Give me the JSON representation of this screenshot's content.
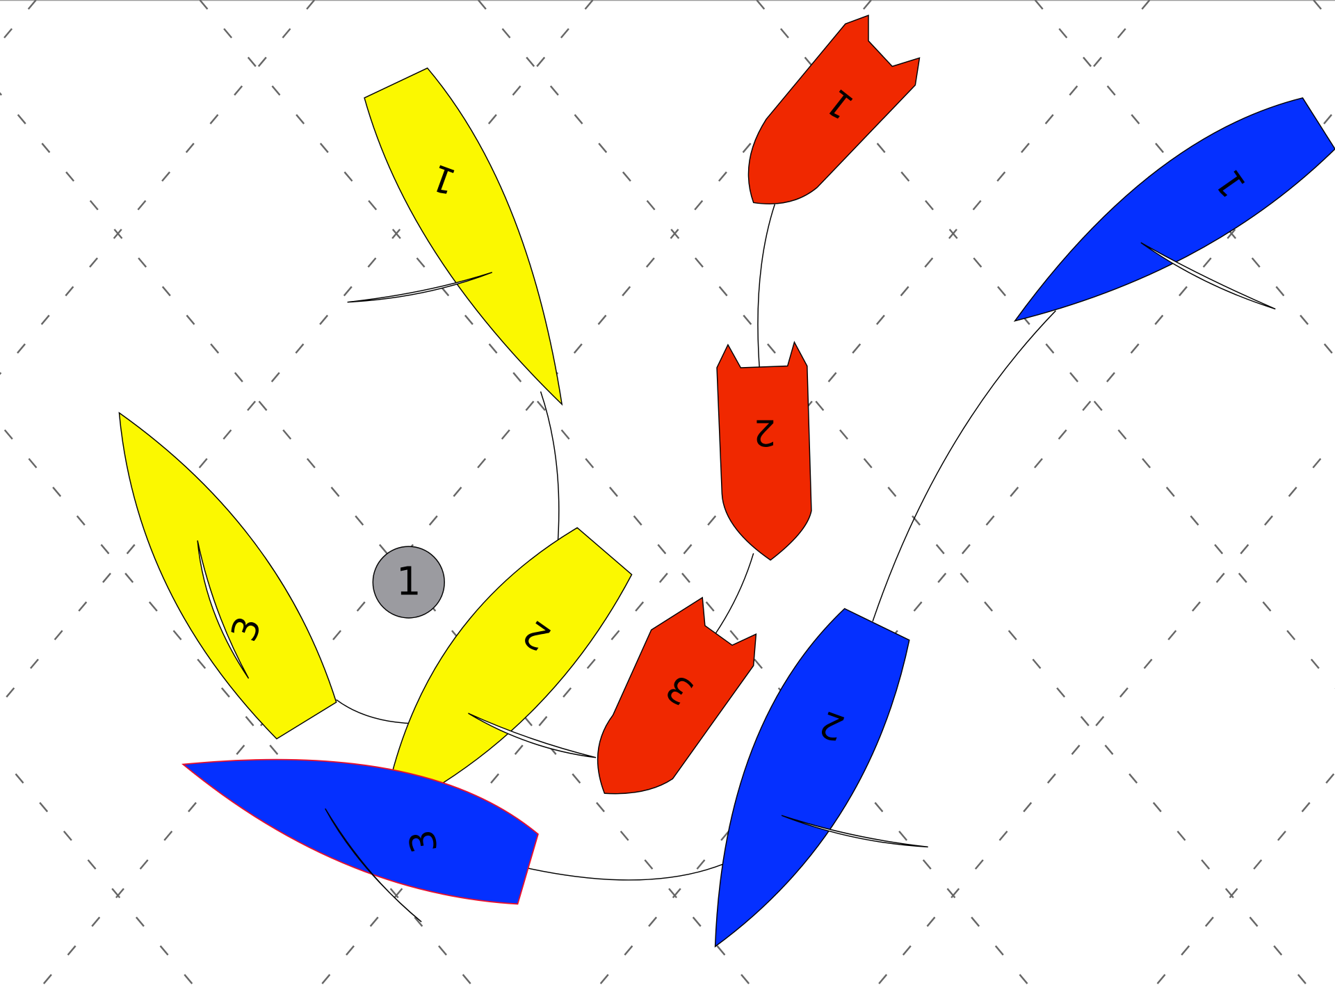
{
  "mark": {
    "label": "1"
  },
  "boats": [
    {
      "label": "1"
    },
    {
      "label": "2"
    },
    {
      "label": "3"
    },
    {
      "label": "1"
    },
    {
      "label": "2"
    },
    {
      "label": "3"
    },
    {
      "label": "1"
    },
    {
      "label": "2"
    },
    {
      "label": "3"
    }
  ]
}
